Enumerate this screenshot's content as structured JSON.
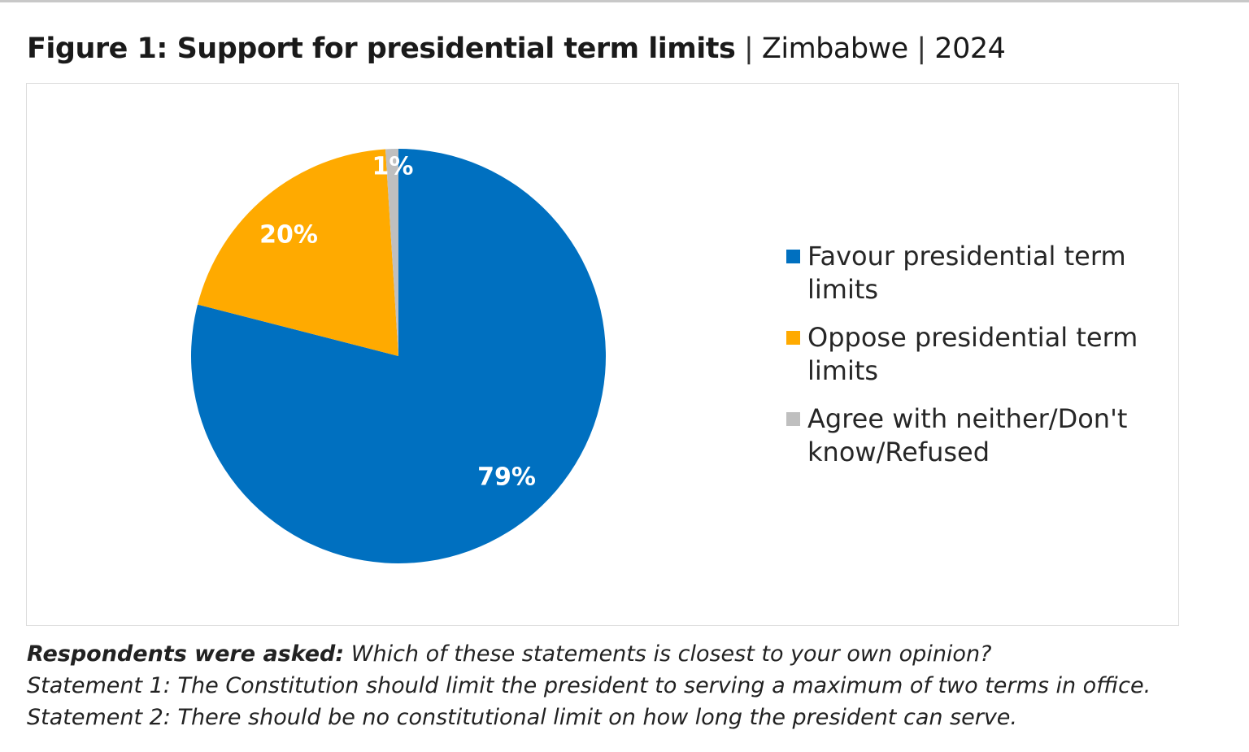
{
  "figure": {
    "title_bold": "Figure 1: Support for presidential term limits",
    "separator": "|",
    "country": "Zimbabwe",
    "year": "2024"
  },
  "chart_data": {
    "type": "pie",
    "slices": [
      {
        "name": "Favour presidential term limits",
        "value": 79,
        "label": "79%",
        "color": "#0070C0"
      },
      {
        "name": "Oppose presidential term limits",
        "value": 20,
        "label": "20%",
        "color": "#FFAA00"
      },
      {
        "name": "Agree with neither/Don't know/Refused",
        "value": 1,
        "label": "1%",
        "color": "#BFBFBF"
      }
    ],
    "start": "12 o'clock",
    "direction": "clockwise",
    "legend_position": "right"
  },
  "caption": {
    "lead": "Respondents were asked:",
    "question": "Which of these statements is closest to your own opinion?",
    "statement1": "Statement 1: The Constitution should limit the president to serving a maximum of two terms in office.",
    "statement2": "Statement 2: There should be no constitutional limit on how long the president can serve."
  }
}
